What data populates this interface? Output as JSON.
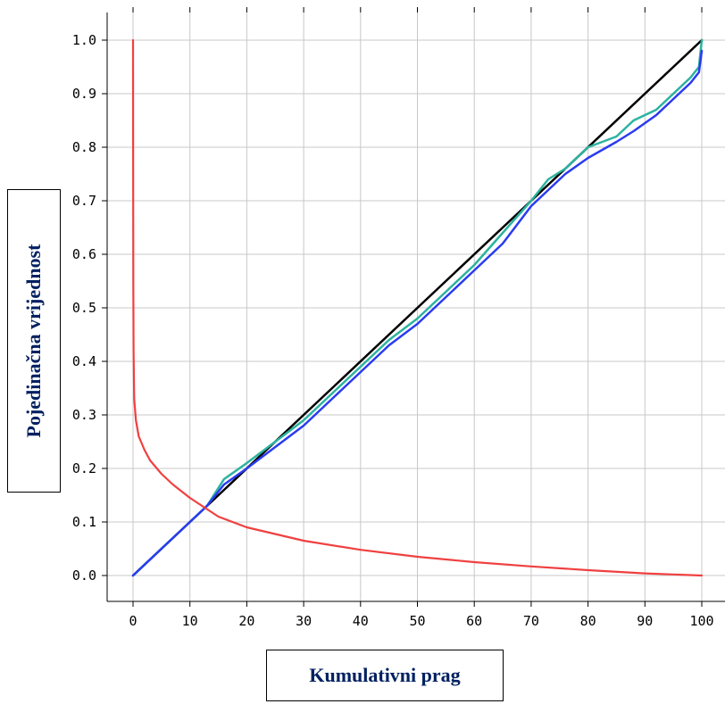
{
  "chart_data": {
    "type": "line",
    "title": "",
    "xlabel": "Kumulativni prag",
    "ylabel": "Pojedinačna vrijednost",
    "xlim": [
      0,
      100
    ],
    "ylim": [
      0,
      1
    ],
    "x_ticks": [
      "0",
      "10",
      "20",
      "30",
      "40",
      "50",
      "60",
      "70",
      "80",
      "90",
      "100"
    ],
    "y_ticks": [
      "0.0",
      "0.1",
      "0.2",
      "0.3",
      "0.4",
      "0.5",
      "0.6",
      "0.7",
      "0.8",
      "0.9",
      "1.0"
    ],
    "grid": true,
    "legend": "none",
    "series": [
      {
        "color": "#000000",
        "x": [
          0,
          100
        ],
        "y": [
          0,
          1
        ]
      },
      {
        "color": "#2bb39f",
        "x": [
          0,
          5,
          10,
          13,
          16,
          20,
          25,
          30,
          35,
          40,
          45,
          50,
          55,
          60,
          65,
          70,
          73,
          76,
          80,
          85,
          88,
          92,
          96,
          98,
          99.5,
          100
        ],
        "y": [
          0,
          0.05,
          0.1,
          0.13,
          0.18,
          0.21,
          0.25,
          0.29,
          0.34,
          0.39,
          0.44,
          0.48,
          0.53,
          0.58,
          0.64,
          0.7,
          0.74,
          0.76,
          0.8,
          0.82,
          0.85,
          0.87,
          0.91,
          0.93,
          0.95,
          1.0
        ]
      },
      {
        "color": "#2a3bf0",
        "x": [
          0,
          5,
          10,
          13,
          16,
          20,
          25,
          30,
          35,
          40,
          45,
          50,
          55,
          60,
          65,
          70,
          73,
          76,
          80,
          85,
          88,
          92,
          96,
          98,
          99.5,
          100
        ],
        "y": [
          0,
          0.05,
          0.1,
          0.13,
          0.17,
          0.2,
          0.24,
          0.28,
          0.33,
          0.38,
          0.43,
          0.47,
          0.52,
          0.57,
          0.62,
          0.69,
          0.72,
          0.75,
          0.78,
          0.81,
          0.83,
          0.86,
          0.9,
          0.92,
          0.94,
          0.98
        ]
      },
      {
        "color": "#f04040",
        "x": [
          0,
          0.02,
          0.05,
          0.1,
          0.2,
          0.5,
          1,
          2,
          3,
          5,
          7,
          10,
          15,
          20,
          30,
          40,
          50,
          60,
          70,
          80,
          90,
          95,
          100
        ],
        "y": [
          1.0,
          0.83,
          0.55,
          0.42,
          0.33,
          0.29,
          0.26,
          0.235,
          0.215,
          0.19,
          0.17,
          0.145,
          0.11,
          0.09,
          0.065,
          0.048,
          0.035,
          0.025,
          0.017,
          0.01,
          0.004,
          0.002,
          0.0
        ]
      }
    ]
  }
}
